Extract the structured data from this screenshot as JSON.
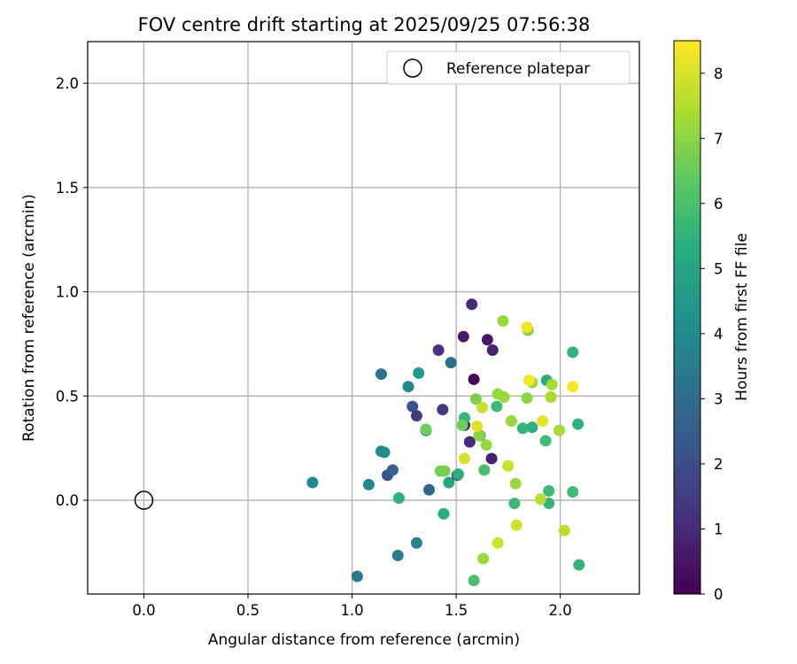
{
  "chart_data": {
    "type": "scatter",
    "title": "FOV centre drift starting at 2025/09/25 07:56:38",
    "xlabel": "Angular distance from reference (arcmin)",
    "ylabel": "Rotation from reference (arcmin)",
    "xlim": [
      -0.27,
      2.38
    ],
    "ylim": [
      -0.45,
      2.2
    ],
    "xticks": [
      "0.0",
      "0.5",
      "1.0",
      "1.5",
      "2.0"
    ],
    "yticks": [
      "0.0",
      "0.5",
      "1.0",
      "1.5",
      "2.0"
    ],
    "xtick_values": [
      0,
      0.5,
      1.0,
      1.5,
      2.0
    ],
    "ytick_values": [
      0,
      0.5,
      1.0,
      1.5,
      2.0
    ],
    "grid": true,
    "legend": {
      "label": "Reference platepar",
      "position": "top-right"
    },
    "reference_point": {
      "x": 0.0,
      "y": 0.0
    },
    "colorbar": {
      "label": "Hours from first FF file",
      "range": [
        0,
        8.5
      ],
      "ticks": [
        "0",
        "1",
        "2",
        "3",
        "4",
        "5",
        "6",
        "7",
        "8"
      ],
      "tick_values": [
        0,
        1,
        2,
        3,
        4,
        5,
        6,
        7,
        8
      ],
      "colormap": "viridis"
    },
    "points": [
      {
        "x": 1.575,
        "y": 0.94,
        "h": 1.0
      },
      {
        "x": 1.535,
        "y": 0.785,
        "h": 0.6
      },
      {
        "x": 1.65,
        "y": 0.77,
        "h": 0.5
      },
      {
        "x": 1.675,
        "y": 0.72,
        "h": 0.8
      },
      {
        "x": 1.415,
        "y": 0.72,
        "h": 1.2
      },
      {
        "x": 1.585,
        "y": 0.58,
        "h": 0.2
      },
      {
        "x": 1.475,
        "y": 0.66,
        "h": 3.0
      },
      {
        "x": 1.29,
        "y": 0.45,
        "h": 2.2
      },
      {
        "x": 1.31,
        "y": 0.405,
        "h": 1.5
      },
      {
        "x": 1.435,
        "y": 0.435,
        "h": 1.3
      },
      {
        "x": 1.54,
        "y": 0.36,
        "h": 0.5
      },
      {
        "x": 1.565,
        "y": 0.28,
        "h": 1.0
      },
      {
        "x": 1.67,
        "y": 0.2,
        "h": 0.8
      },
      {
        "x": 1.505,
        "y": 0.12,
        "h": 1.5
      },
      {
        "x": 1.17,
        "y": 0.12,
        "h": 2.2
      },
      {
        "x": 1.195,
        "y": 0.145,
        "h": 2.6
      },
      {
        "x": 1.37,
        "y": 0.05,
        "h": 2.8
      },
      {
        "x": 1.14,
        "y": 0.605,
        "h": 3.2
      },
      {
        "x": 1.27,
        "y": 0.545,
        "h": 4.0
      },
      {
        "x": 1.32,
        "y": 0.61,
        "h": 4.6
      },
      {
        "x": 1.355,
        "y": 0.335,
        "h": 3.6
      },
      {
        "x": 1.14,
        "y": 0.235,
        "h": 4.0
      },
      {
        "x": 1.155,
        "y": 0.23,
        "h": 4.2
      },
      {
        "x": 1.08,
        "y": 0.075,
        "h": 4.0
      },
      {
        "x": 0.81,
        "y": 0.085,
        "h": 4.0
      },
      {
        "x": 1.22,
        "y": -0.265,
        "h": 3.6
      },
      {
        "x": 1.31,
        "y": -0.205,
        "h": 3.8
      },
      {
        "x": 1.025,
        "y": -0.365,
        "h": 3.4
      },
      {
        "x": 1.225,
        "y": 0.01,
        "h": 5.4
      },
      {
        "x": 1.44,
        "y": -0.065,
        "h": 5.2
      },
      {
        "x": 1.585,
        "y": -0.385,
        "h": 6.0
      },
      {
        "x": 1.465,
        "y": 0.085,
        "h": 5.0
      },
      {
        "x": 1.51,
        "y": 0.125,
        "h": 5.2
      },
      {
        "x": 1.635,
        "y": 0.145,
        "h": 6.0
      },
      {
        "x": 1.54,
        "y": 0.395,
        "h": 5.6
      },
      {
        "x": 1.615,
        "y": 0.31,
        "h": 5.6
      },
      {
        "x": 1.695,
        "y": 0.45,
        "h": 5.8
      },
      {
        "x": 1.82,
        "y": 0.345,
        "h": 5.6
      },
      {
        "x": 1.865,
        "y": 0.35,
        "h": 5.4
      },
      {
        "x": 1.93,
        "y": 0.285,
        "h": 5.8
      },
      {
        "x": 1.935,
        "y": 0.575,
        "h": 5.2
      },
      {
        "x": 1.945,
        "y": 0.045,
        "h": 5.8
      },
      {
        "x": 1.945,
        "y": -0.015,
        "h": 5.6
      },
      {
        "x": 1.78,
        "y": -0.015,
        "h": 5.8
      },
      {
        "x": 2.06,
        "y": 0.71,
        "h": 5.6
      },
      {
        "x": 2.06,
        "y": 0.04,
        "h": 5.8
      },
      {
        "x": 2.085,
        "y": 0.365,
        "h": 5.4
      },
      {
        "x": 2.09,
        "y": -0.31,
        "h": 5.6
      },
      {
        "x": 1.355,
        "y": 0.34,
        "h": 6.6
      },
      {
        "x": 1.425,
        "y": 0.14,
        "h": 6.6
      },
      {
        "x": 1.445,
        "y": 0.14,
        "h": 6.8
      },
      {
        "x": 1.53,
        "y": 0.36,
        "h": 6.6
      },
      {
        "x": 1.595,
        "y": 0.485,
        "h": 6.8
      },
      {
        "x": 1.61,
        "y": 0.31,
        "h": 7.0
      },
      {
        "x": 1.645,
        "y": 0.265,
        "h": 7.2
      },
      {
        "x": 1.7,
        "y": 0.51,
        "h": 7.2
      },
      {
        "x": 1.73,
        "y": 0.495,
        "h": 7.2
      },
      {
        "x": 1.725,
        "y": 0.86,
        "h": 7.2
      },
      {
        "x": 1.765,
        "y": 0.38,
        "h": 7.2
      },
      {
        "x": 1.785,
        "y": 0.08,
        "h": 7.2
      },
      {
        "x": 1.84,
        "y": 0.49,
        "h": 7.0
      },
      {
        "x": 1.845,
        "y": 0.815,
        "h": 6.9
      },
      {
        "x": 1.865,
        "y": 0.565,
        "h": 7.2
      },
      {
        "x": 1.96,
        "y": 0.555,
        "h": 7.4
      },
      {
        "x": 1.955,
        "y": 0.495,
        "h": 7.4
      },
      {
        "x": 1.995,
        "y": 0.335,
        "h": 7.4
      },
      {
        "x": 1.63,
        "y": -0.28,
        "h": 7.2
      },
      {
        "x": 1.54,
        "y": 0.2,
        "h": 8.0
      },
      {
        "x": 1.6,
        "y": 0.355,
        "h": 8.1
      },
      {
        "x": 1.625,
        "y": 0.445,
        "h": 7.8
      },
      {
        "x": 1.75,
        "y": 0.165,
        "h": 7.8
      },
      {
        "x": 1.79,
        "y": -0.12,
        "h": 7.9
      },
      {
        "x": 1.7,
        "y": -0.205,
        "h": 7.9
      },
      {
        "x": 1.84,
        "y": 0.83,
        "h": 8.3
      },
      {
        "x": 1.85,
        "y": 0.575,
        "h": 8.4
      },
      {
        "x": 1.905,
        "y": 0.005,
        "h": 7.6
      },
      {
        "x": 1.915,
        "y": 0.38,
        "h": 8.2
      },
      {
        "x": 2.02,
        "y": -0.145,
        "h": 7.6
      },
      {
        "x": 2.06,
        "y": 0.545,
        "h": 8.4
      }
    ]
  }
}
